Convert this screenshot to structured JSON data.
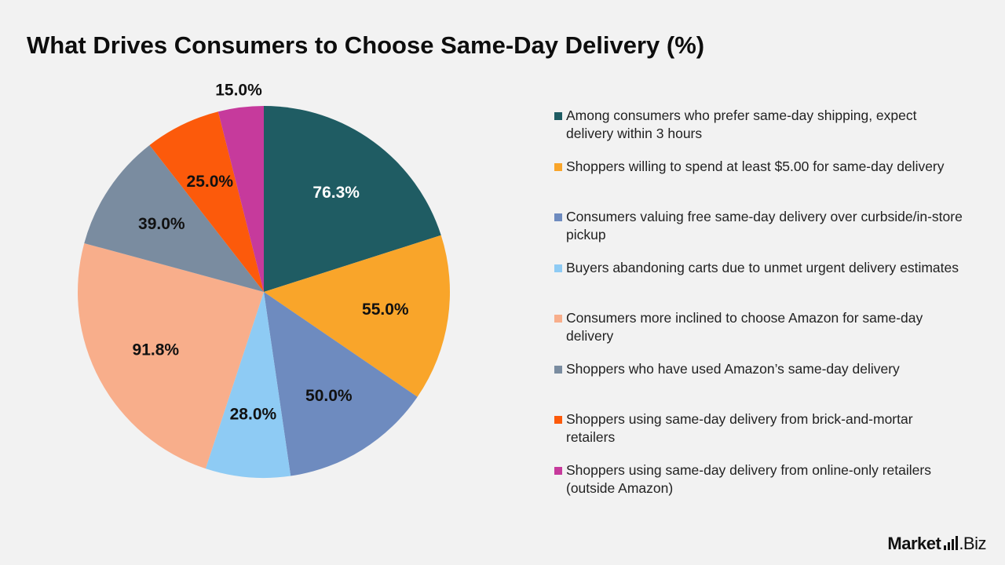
{
  "title": "What Drives Consumers to Choose Same-Day Delivery (%)",
  "brand": {
    "name_strong": "Market",
    "name_rest": ".Biz",
    "logo_icon": "bars-icon"
  },
  "chart_data": {
    "type": "pie",
    "title": "What Drives Consumers to Choose Same-Day Delivery (%)",
    "legend_position": "right",
    "slices": [
      {
        "label": "Among consumers who prefer same-day shipping, expect delivery within 3 hours",
        "value": 76.3,
        "display": "76.3%",
        "color": "#1f5c63",
        "label_color": "#ffffff"
      },
      {
        "label": "Shoppers willing to spend at least $5.00 for same-day delivery",
        "value": 55.0,
        "display": "55.0%",
        "color": "#f9a52a",
        "label_color": "#111111"
      },
      {
        "label": "Consumers valuing free same-day delivery over curbside/in-store pickup",
        "value": 50.0,
        "display": "50.0%",
        "color": "#6e8bbf",
        "label_color": "#111111"
      },
      {
        "label": "Buyers abandoning carts due to unmet urgent delivery estimates",
        "value": 28.0,
        "display": "28.0%",
        "color": "#8ecbf4",
        "label_color": "#111111"
      },
      {
        "label": "Consumers more inclined to choose Amazon for same-day delivery",
        "value": 91.8,
        "display": "91.8%",
        "color": "#f8ae8b",
        "label_color": "#111111"
      },
      {
        "label": "Shoppers who have used Amazon’s same-day delivery",
        "value": 39.0,
        "display": "39.0%",
        "color": "#7a8ca0",
        "label_color": "#111111"
      },
      {
        "label": "Shoppers using same-day delivery from brick-and-mortar retailers",
        "value": 25.0,
        "display": "25.0%",
        "color": "#fc5a0b",
        "label_color": "#111111"
      },
      {
        "label": "Shoppers using same-day delivery from online-only retailers (outside Amazon)",
        "value": 15.0,
        "display": "15.0%",
        "color": "#c63a9c",
        "label_color": "#111111"
      }
    ]
  }
}
